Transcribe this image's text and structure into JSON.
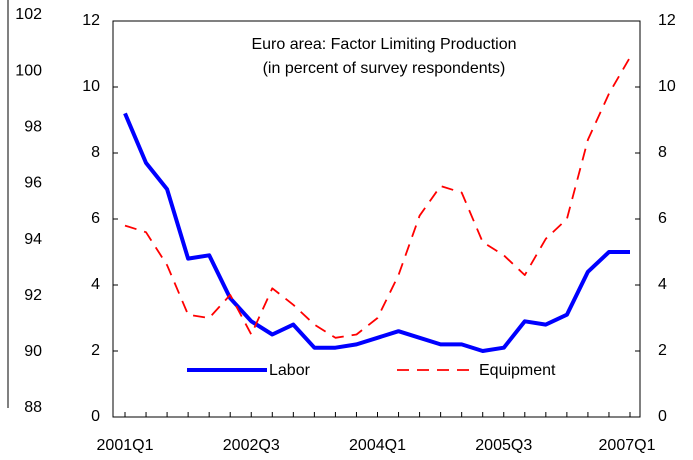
{
  "chart_data": [
    {
      "type": "line",
      "annotation": [
        "Euro area:  Factor Limiting Production",
        "(in percent of survey respondents)"
      ],
      "categories": [
        "2001Q1",
        null,
        null,
        null,
        null,
        null,
        "2002Q3",
        null,
        null,
        null,
        null,
        null,
        "2004Q1",
        null,
        null,
        null,
        null,
        null,
        "2005Q3",
        null,
        null,
        null,
        null,
        null,
        "2007Q1"
      ],
      "series": [
        {
          "name": "Labor",
          "color": "#0000ff",
          "dash": "solid",
          "values": [
            9.2,
            7.7,
            6.9,
            4.8,
            4.9,
            3.6,
            2.9,
            2.5,
            2.8,
            2.1,
            2.1,
            2.2,
            2.4,
            2.6,
            2.4,
            2.2,
            2.2,
            2.0,
            2.1,
            2.9,
            2.8,
            3.1,
            4.4,
            5.0,
            5.0
          ]
        },
        {
          "name": "Equipment",
          "color": "#ff0000",
          "dash": "dashed",
          "values": [
            5.8,
            5.6,
            4.6,
            3.1,
            3.0,
            3.7,
            2.5,
            3.9,
            3.4,
            2.8,
            2.4,
            2.5,
            3.0,
            4.3,
            6.1,
            7.0,
            6.8,
            5.3,
            4.9,
            4.3,
            5.4,
            6.0,
            8.4,
            9.8,
            10.9
          ]
        }
      ],
      "ylim": [
        0,
        12
      ],
      "yticks": [
        0,
        2,
        4,
        6,
        8,
        10,
        12
      ],
      "y2lim": [
        0,
        12
      ],
      "y2ticks": [
        0,
        2,
        4,
        6,
        8,
        10,
        12
      ],
      "legend": "lower center"
    },
    {
      "type": "line",
      "ylim": [
        88,
        102
      ],
      "yticks": [
        88,
        90,
        92,
        94,
        96,
        98,
        100,
        102
      ]
    }
  ]
}
